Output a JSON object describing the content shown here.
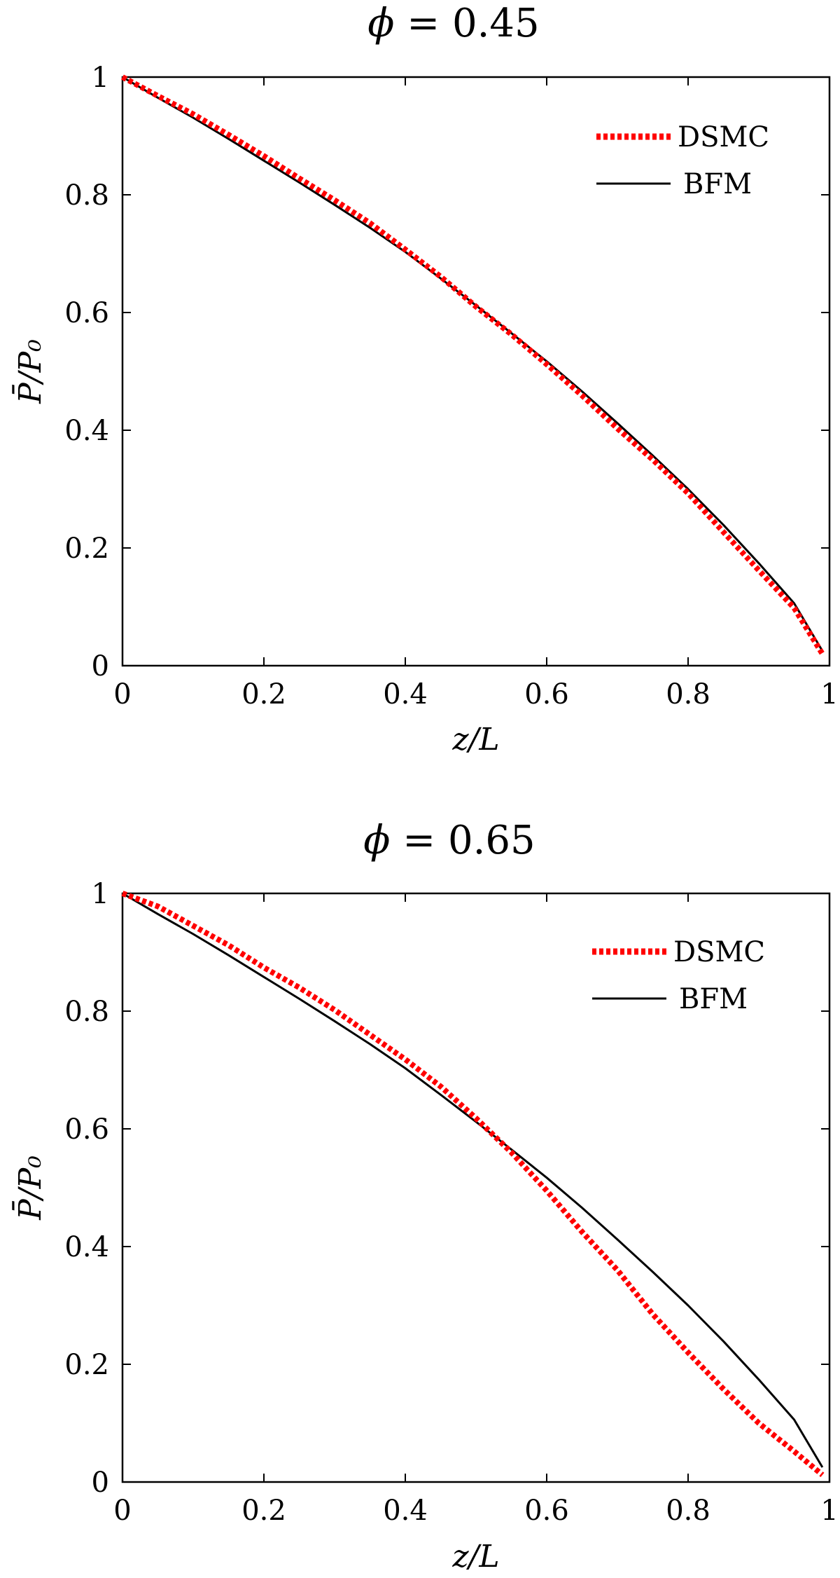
{
  "chart_data": [
    {
      "type": "line",
      "title": "ϕ = 0.45",
      "title_parts": {
        "symbol": "ϕ",
        "rest": " = 0.45"
      },
      "xlabel": "z/L",
      "ylabel": "P̄/P₀",
      "xlim": [
        0,
        1
      ],
      "ylim": [
        0,
        1
      ],
      "xticks": [
        "0",
        "0.2",
        "0.4",
        "0.6",
        "0.8",
        "1"
      ],
      "yticks": [
        "0",
        "0.2",
        "0.4",
        "0.6",
        "0.8",
        "1"
      ],
      "grid": false,
      "legend_position": "top-right",
      "series": [
        {
          "name": "DSMC",
          "style": "dotted",
          "color": "#ff0000",
          "x": [
            0,
            0.05,
            0.1,
            0.15,
            0.2,
            0.25,
            0.3,
            0.35,
            0.4,
            0.45,
            0.5,
            0.55,
            0.6,
            0.65,
            0.7,
            0.75,
            0.8,
            0.85,
            0.9,
            0.95,
            0.99
          ],
          "y": [
            1.0,
            0.968,
            0.937,
            0.902,
            0.866,
            0.828,
            0.791,
            0.752,
            0.707,
            0.661,
            0.61,
            0.563,
            0.512,
            0.459,
            0.403,
            0.35,
            0.293,
            0.227,
            0.162,
            0.098,
            0.02
          ]
        },
        {
          "name": "BFM",
          "style": "solid",
          "color": "#000000",
          "x": [
            0,
            0.05,
            0.1,
            0.15,
            0.2,
            0.25,
            0.3,
            0.35,
            0.4,
            0.45,
            0.5,
            0.55,
            0.6,
            0.65,
            0.7,
            0.75,
            0.8,
            0.85,
            0.9,
            0.95,
            0.99
          ],
          "y": [
            1.0,
            0.965,
            0.931,
            0.895,
            0.858,
            0.821,
            0.783,
            0.744,
            0.703,
            0.658,
            0.612,
            0.565,
            0.517,
            0.466,
            0.412,
            0.357,
            0.3,
            0.239,
            0.174,
            0.106,
            0.025
          ]
        }
      ]
    },
    {
      "type": "line",
      "title": "ϕ = 0.65",
      "title_parts": {
        "symbol": "ϕ",
        "rest": " = 0.65"
      },
      "xlabel": "z/L",
      "ylabel": "P̄/P₀",
      "xlim": [
        0,
        1
      ],
      "ylim": [
        0,
        1
      ],
      "xticks": [
        "0",
        "0.2",
        "0.4",
        "0.6",
        "0.8",
        "1"
      ],
      "yticks": [
        "0",
        "0.2",
        "0.4",
        "0.6",
        "0.8",
        "1"
      ],
      "grid": false,
      "legend_position": "top-right",
      "series": [
        {
          "name": "DSMC",
          "style": "dotted",
          "color": "#ff0000",
          "x": [
            0,
            0.05,
            0.1,
            0.15,
            0.2,
            0.25,
            0.3,
            0.35,
            0.4,
            0.45,
            0.5,
            0.55,
            0.6,
            0.65,
            0.7,
            0.75,
            0.8,
            0.85,
            0.9,
            0.95,
            0.99
          ],
          "y": [
            1.0,
            0.978,
            0.945,
            0.912,
            0.874,
            0.84,
            0.802,
            0.76,
            0.718,
            0.672,
            0.618,
            0.56,
            0.495,
            0.425,
            0.36,
            0.285,
            0.22,
            0.158,
            0.1,
            0.052,
            0.012
          ]
        },
        {
          "name": "BFM",
          "style": "solid",
          "color": "#000000",
          "x": [
            0,
            0.05,
            0.1,
            0.15,
            0.2,
            0.25,
            0.3,
            0.35,
            0.4,
            0.45,
            0.5,
            0.55,
            0.6,
            0.65,
            0.7,
            0.75,
            0.8,
            0.85,
            0.9,
            0.95,
            0.99
          ],
          "y": [
            1.0,
            0.965,
            0.931,
            0.895,
            0.858,
            0.821,
            0.783,
            0.744,
            0.703,
            0.658,
            0.612,
            0.565,
            0.517,
            0.466,
            0.412,
            0.357,
            0.3,
            0.239,
            0.174,
            0.106,
            0.025
          ]
        }
      ]
    }
  ]
}
